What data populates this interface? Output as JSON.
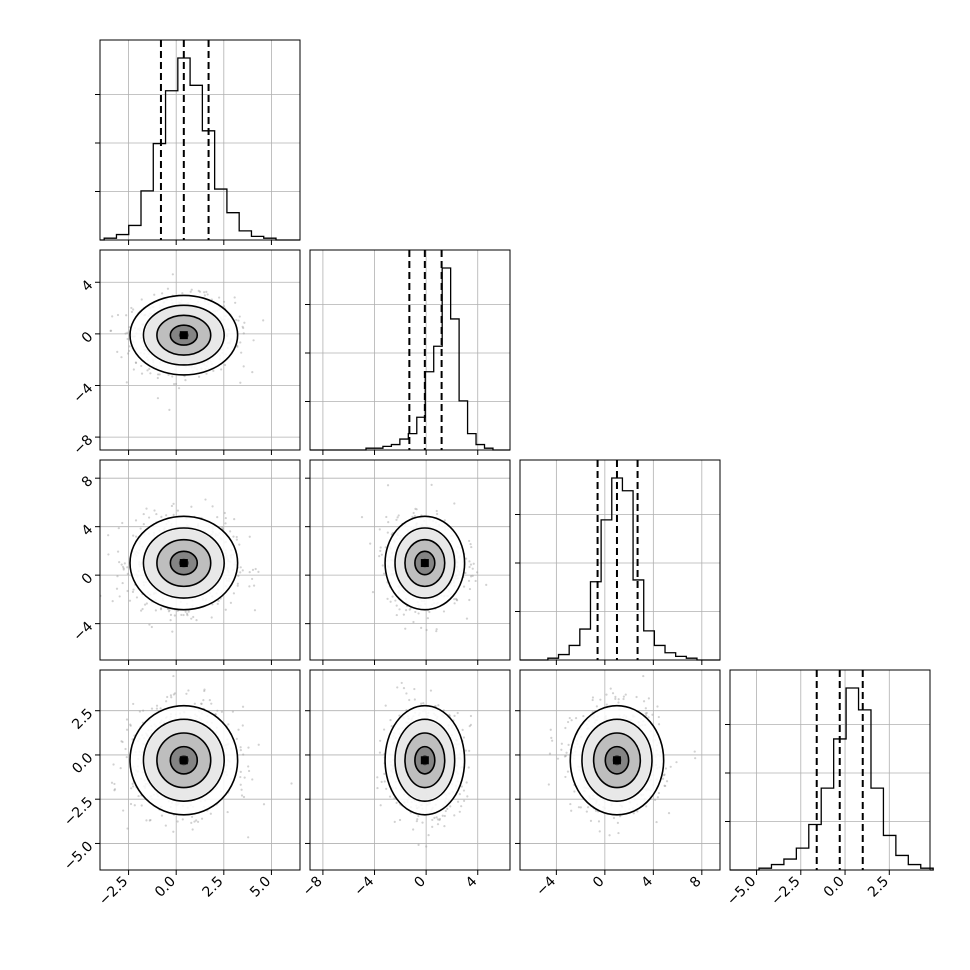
{
  "chart_data": {
    "type": "corner",
    "title": "",
    "n_params": 4,
    "parameters": [
      {
        "index": 0,
        "mean": 0.4,
        "sd": 1.1,
        "range": [
          -4.0,
          6.5
        ],
        "quantiles": [
          -0.8,
          0.4,
          1.7
        ],
        "ticks": [
          -2.5,
          0.0,
          2.5,
          5.0
        ],
        "tick_labels": [
          "−2.5",
          "0.0",
          "2.5",
          "5.0"
        ]
      },
      {
        "index": 1,
        "mean": -0.1,
        "sd": 1.2,
        "range": [
          -9.0,
          6.5
        ],
        "quantiles": [
          -1.3,
          -0.1,
          1.2
        ],
        "ticks": [
          -8,
          -4,
          0,
          4
        ],
        "tick_labels": [
          "−8",
          "−4",
          "0",
          "4"
        ]
      },
      {
        "index": 2,
        "mean": 1.0,
        "sd": 1.5,
        "range": [
          -7.0,
          9.5
        ],
        "quantiles": [
          -0.6,
          1.0,
          2.7
        ],
        "ticks": [
          -4,
          0,
          4,
          8
        ],
        "tick_labels": [
          "−4",
          "0",
          "4",
          "8"
        ]
      },
      {
        "index": 3,
        "mean": -0.3,
        "sd": 1.2,
        "range": [
          -6.5,
          4.8
        ],
        "quantiles": [
          -1.6,
          -0.3,
          1.0
        ],
        "ticks": [
          -5.0,
          -2.5,
          0.0,
          2.5
        ],
        "tick_labels": [
          "−5.0",
          "−2.5",
          "0.0",
          "2.5"
        ]
      }
    ],
    "histogram_counts_relative": {
      "p0": [
        0.01,
        0.03,
        0.08,
        0.27,
        0.53,
        0.82,
        1.0,
        0.85,
        0.6,
        0.28,
        0.15,
        0.05,
        0.02,
        0.01
      ],
      "p1": [
        0.01,
        0.01,
        0.02,
        0.03,
        0.06,
        0.09,
        0.18,
        0.43,
        0.57,
        1.0,
        0.72,
        0.27,
        0.09,
        0.03,
        0.01
      ],
      "p2": [
        0.01,
        0.03,
        0.08,
        0.17,
        0.43,
        0.77,
        1.0,
        0.93,
        0.44,
        0.16,
        0.08,
        0.04,
        0.02,
        0.01
      ],
      "p3": [
        0.01,
        0.03,
        0.06,
        0.12,
        0.25,
        0.45,
        0.72,
        1.0,
        0.88,
        0.45,
        0.19,
        0.08,
        0.03,
        0.01
      ]
    },
    "pairs": [
      {
        "x": 0,
        "y": 1,
        "contour_levels_sigma": [
          0.5,
          1.0,
          1.5,
          2.0
        ]
      },
      {
        "x": 0,
        "y": 2,
        "contour_levels_sigma": [
          0.5,
          1.0,
          1.5,
          2.0
        ]
      },
      {
        "x": 1,
        "y": 2,
        "contour_levels_sigma": [
          0.5,
          1.0,
          1.5,
          2.0
        ]
      },
      {
        "x": 0,
        "y": 3,
        "contour_levels_sigma": [
          0.5,
          1.0,
          1.5,
          2.0
        ]
      },
      {
        "x": 1,
        "y": 3,
        "contour_levels_sigma": [
          0.5,
          1.0,
          1.5,
          2.0
        ]
      },
      {
        "x": 2,
        "y": 3,
        "contour_levels_sigma": [
          0.5,
          1.0,
          1.5,
          2.0
        ]
      }
    ],
    "grid": true,
    "legend": "none",
    "xlabel": "",
    "ylabel": ""
  }
}
